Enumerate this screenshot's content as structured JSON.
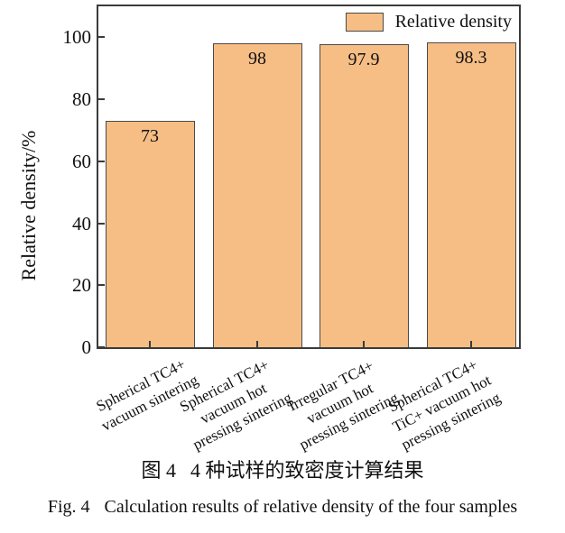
{
  "chart_data": {
    "type": "bar",
    "title": "",
    "xlabel": "",
    "ylabel": "Relative density/%",
    "ylim": [
      0,
      110
    ],
    "yticks": [
      0,
      20,
      40,
      60,
      80,
      100
    ],
    "grid": false,
    "legend": {
      "label": "Relative density",
      "position": "top-right"
    },
    "categories": [
      [
        "Spherical TC4+",
        "vacuum sintering"
      ],
      [
        "Spherical TC4+",
        "vacuum hot",
        "pressing sintering"
      ],
      [
        "Irregular TC4+",
        "vacuum hot",
        "pressing sintering"
      ],
      [
        "Spherical TC4+",
        "TiC+ vacuum hot",
        "pressing sintering"
      ]
    ],
    "values": [
      73,
      98,
      97.9,
      98.3
    ],
    "value_labels": [
      "73",
      "98",
      "97.9",
      "98.3"
    ],
    "colors": {
      "bar_fill": "#F6BE85",
      "bar_border": "#4A4A4A",
      "axis": "#3B3B3B",
      "text": "#111111"
    }
  },
  "caption_zh": {
    "fig_label": "图 4",
    "text": "4 种试样的致密度计算结果"
  },
  "caption_en": {
    "fig_label": "Fig. 4",
    "text": "Calculation results of relative density of the four samples"
  }
}
